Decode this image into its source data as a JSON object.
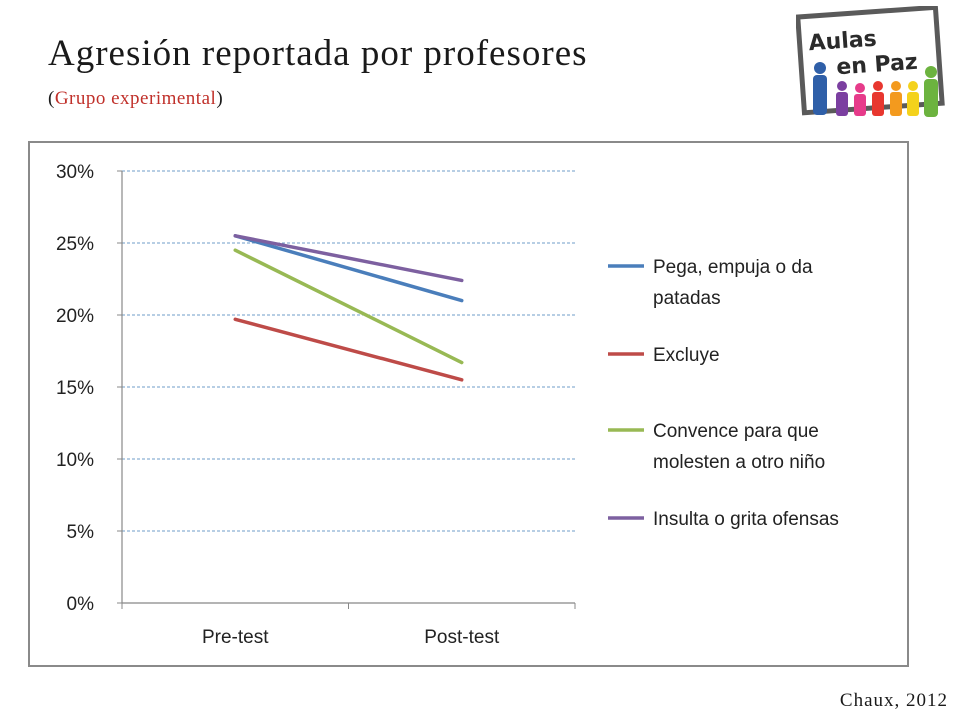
{
  "slide": {
    "title": "Agresión reportada por profesores",
    "subtitle_open": "(",
    "subtitle_text": "Grupo experimental",
    "subtitle_close": ")",
    "credit": "Chaux, 2012",
    "logo_text_line1": "Aulas",
    "logo_text_line2": "en Paz"
  },
  "chart_data": {
    "type": "line",
    "categories": [
      "Pre-test",
      "Post-test"
    ],
    "yticks": [
      "0%",
      "5%",
      "10%",
      "15%",
      "20%",
      "25%",
      "30%"
    ],
    "ylim": [
      0,
      30
    ],
    "grid": true,
    "legend_position": "right",
    "series": [
      {
        "name": "Pega, empuja o da patadas",
        "name_lines": [
          "Pega, empuja o da",
          "patadas"
        ],
        "values": [
          25.5,
          21.0
        ],
        "color": "#4a7ebb"
      },
      {
        "name": "Excluye",
        "name_lines": [
          "Excluye"
        ],
        "values": [
          19.7,
          15.5
        ],
        "color": "#be4b48"
      },
      {
        "name": "Convence para que molesten a otro niño",
        "name_lines": [
          "Convence para que",
          "molesten a otro niño"
        ],
        "values": [
          24.5,
          16.7
        ],
        "color": "#98b954"
      },
      {
        "name": "Insulta o grita ofensas",
        "name_lines": [
          "Insulta o grita ofensas"
        ],
        "values": [
          25.5,
          22.4
        ],
        "color": "#7d60a0"
      }
    ]
  }
}
